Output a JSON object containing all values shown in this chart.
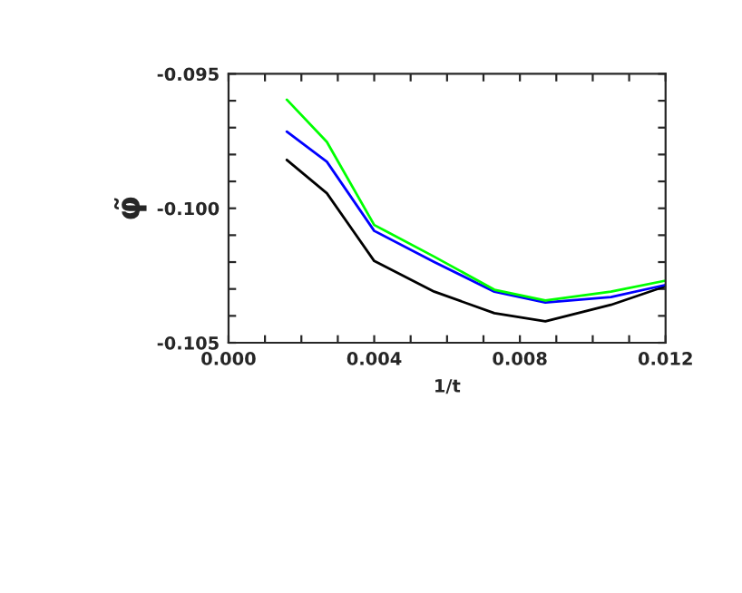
{
  "chart_data": {
    "type": "line",
    "xlabel": "1/t",
    "ylabel": "φ̃",
    "xlim": [
      0.0,
      0.012
    ],
    "ylim": [
      -0.105,
      -0.095
    ],
    "xticks": [
      {
        "value": 0.0,
        "label": "0.000"
      },
      {
        "value": 0.001,
        "label": null
      },
      {
        "value": 0.002,
        "label": null
      },
      {
        "value": 0.003,
        "label": null
      },
      {
        "value": 0.004,
        "label": "0.004"
      },
      {
        "value": 0.005,
        "label": null
      },
      {
        "value": 0.006,
        "label": null
      },
      {
        "value": 0.007,
        "label": null
      },
      {
        "value": 0.008,
        "label": "0.008"
      },
      {
        "value": 0.009,
        "label": null
      },
      {
        "value": 0.01,
        "label": null
      },
      {
        "value": 0.011,
        "label": null
      },
      {
        "value": 0.012,
        "label": "0.012"
      }
    ],
    "yticks": [
      {
        "value": -0.105,
        "label": "-0.105"
      },
      {
        "value": -0.104,
        "label": null
      },
      {
        "value": -0.103,
        "label": null
      },
      {
        "value": -0.102,
        "label": null
      },
      {
        "value": -0.101,
        "label": null
      },
      {
        "value": -0.1,
        "label": "-0.100"
      },
      {
        "value": -0.099,
        "label": null
      },
      {
        "value": -0.098,
        "label": null
      },
      {
        "value": -0.097,
        "label": null
      },
      {
        "value": -0.096,
        "label": null
      },
      {
        "value": -0.095,
        "label": "-0.095"
      }
    ],
    "grid": false,
    "legend": false,
    "marker": "none",
    "line_style": "solid",
    "series": [
      {
        "color": "#000000",
        "x": [
          0.0016,
          0.0027,
          0.004,
          0.00565,
          0.0073,
          0.0087,
          0.0105,
          0.012
        ],
        "values": [
          -0.0982,
          -0.09944,
          -0.10196,
          -0.1031,
          -0.1039,
          -0.1042,
          -0.10359,
          -0.1029
        ]
      },
      {
        "color": "#0000ff",
        "x": [
          0.0016,
          0.0027,
          0.004,
          0.00565,
          0.0073,
          0.0087,
          0.0105,
          0.012
        ],
        "values": [
          -0.09715,
          -0.09827,
          -0.10084,
          -0.102,
          -0.1031,
          -0.1035,
          -0.1033,
          -0.10285
        ]
      },
      {
        "color": "#00ff00",
        "x": [
          0.0016,
          0.0027,
          0.004,
          0.00565,
          0.0073,
          0.0087,
          0.0105,
          0.012
        ],
        "values": [
          -0.09596,
          -0.09753,
          -0.10062,
          -0.1018,
          -0.10303,
          -0.10343,
          -0.1031,
          -0.10269
        ]
      }
    ]
  }
}
